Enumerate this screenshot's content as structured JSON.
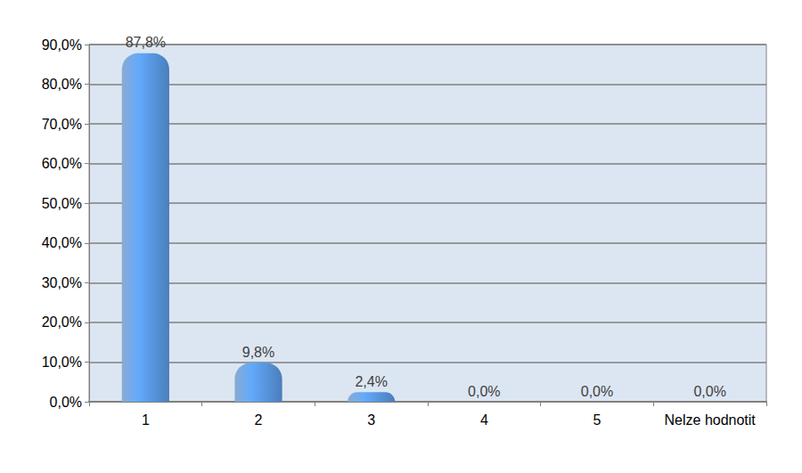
{
  "chart_data": {
    "type": "bar",
    "categories": [
      "1",
      "2",
      "3",
      "4",
      "5",
      "Nelze hodnotit"
    ],
    "values": [
      87.8,
      9.8,
      2.4,
      0,
      0,
      0
    ],
    "value_labels": [
      "87,8%",
      "9,8%",
      "2,4%",
      "0,0%",
      "0,0%",
      "0,0%"
    ],
    "color": "#4a7ebb",
    "ylim": [
      0,
      90
    ],
    "yticks": [
      {
        "value": 0,
        "label": "0,0%"
      },
      {
        "value": 10,
        "label": "10,0%"
      },
      {
        "value": 20,
        "label": "20,0%"
      },
      {
        "value": 30,
        "label": "30,0%"
      },
      {
        "value": 40,
        "label": "40,0%"
      },
      {
        "value": 50,
        "label": "50,0%"
      },
      {
        "value": 60,
        "label": "60,0%"
      },
      {
        "value": 70,
        "label": "70,0%"
      },
      {
        "value": 80,
        "label": "80,0%"
      },
      {
        "value": 90,
        "label": "90,0%"
      }
    ],
    "grid": true,
    "data_labels": true
  }
}
